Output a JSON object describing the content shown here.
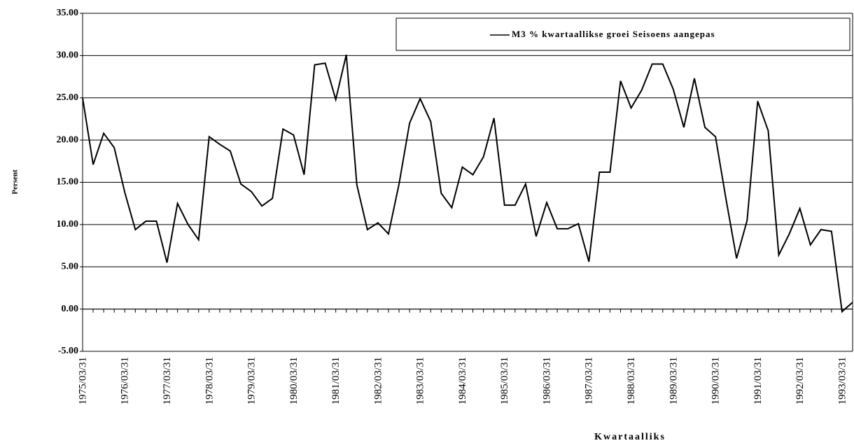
{
  "chart_data": {
    "type": "line",
    "ylabel": "Persent",
    "xlabel": "Kwartaalliks",
    "categories": [
      "1975/03/31",
      null,
      null,
      null,
      "1976/03/31",
      null,
      null,
      null,
      "1977/03/31",
      null,
      null,
      null,
      "1978/03/31",
      null,
      null,
      null,
      "1979/03/31",
      null,
      null,
      null,
      "1980/03/31",
      null,
      null,
      null,
      "1981/03/31",
      null,
      null,
      null,
      "1982/03/31",
      null,
      null,
      null,
      "1983/03/31",
      null,
      null,
      null,
      "1984/03/31",
      null,
      null,
      null,
      "1985/03/31",
      null,
      null,
      null,
      "1986/03/31",
      null,
      null,
      null,
      "1987/03/31",
      null,
      null,
      null,
      "1988/03/31",
      null,
      null,
      null,
      "1989/03/31",
      null,
      null,
      null,
      "1990/03/31",
      null,
      null,
      null,
      "1991/03/31",
      null,
      null,
      null,
      "1992/03/31",
      null,
      null,
      null,
      "1993/03/31",
      null
    ],
    "series": [
      {
        "name": "M3 % kwartaallikse groei  Seisoens aangepas",
        "color": "#000000",
        "values": [
          25.0,
          17.1,
          20.8,
          19.1,
          13.8,
          9.4,
          10.4,
          10.4,
          5.5,
          12.5,
          10.0,
          8.2,
          20.4,
          19.5,
          18.7,
          14.8,
          13.9,
          12.2,
          13.1,
          21.3,
          20.6,
          15.9,
          28.9,
          29.1,
          24.8,
          30.1,
          14.7,
          9.4,
          10.2,
          8.9,
          14.8,
          22.0,
          24.9,
          22.2,
          13.7,
          12.0,
          16.8,
          15.9,
          18.0,
          22.6,
          12.3,
          12.3,
          14.8,
          8.6,
          12.6,
          9.5,
          9.5,
          10.1,
          5.6,
          16.2,
          16.2,
          27.0,
          23.8,
          25.9,
          29.0,
          29.0,
          26.0,
          21.5,
          27.3,
          21.5,
          20.4,
          13.0,
          6.0,
          10.5,
          24.6,
          21.1,
          6.4,
          8.9,
          11.9,
          7.6,
          9.4,
          9.2,
          -0.3,
          0.8
        ]
      }
    ],
    "ylim": [
      -5,
      35
    ],
    "yticks": [
      {
        "value": -5,
        "label": "-5.00"
      },
      {
        "value": 0,
        "label": "0.00"
      },
      {
        "value": 5,
        "label": "5.00"
      },
      {
        "value": 10,
        "label": "10.00"
      },
      {
        "value": 15,
        "label": "15.00"
      },
      {
        "value": 20,
        "label": "20.00"
      },
      {
        "value": 25,
        "label": "25.00"
      },
      {
        "value": 30,
        "label": "30.00"
      },
      {
        "value": 35,
        "label": "35.00"
      }
    ],
    "grid": true,
    "legend": "top-right"
  }
}
